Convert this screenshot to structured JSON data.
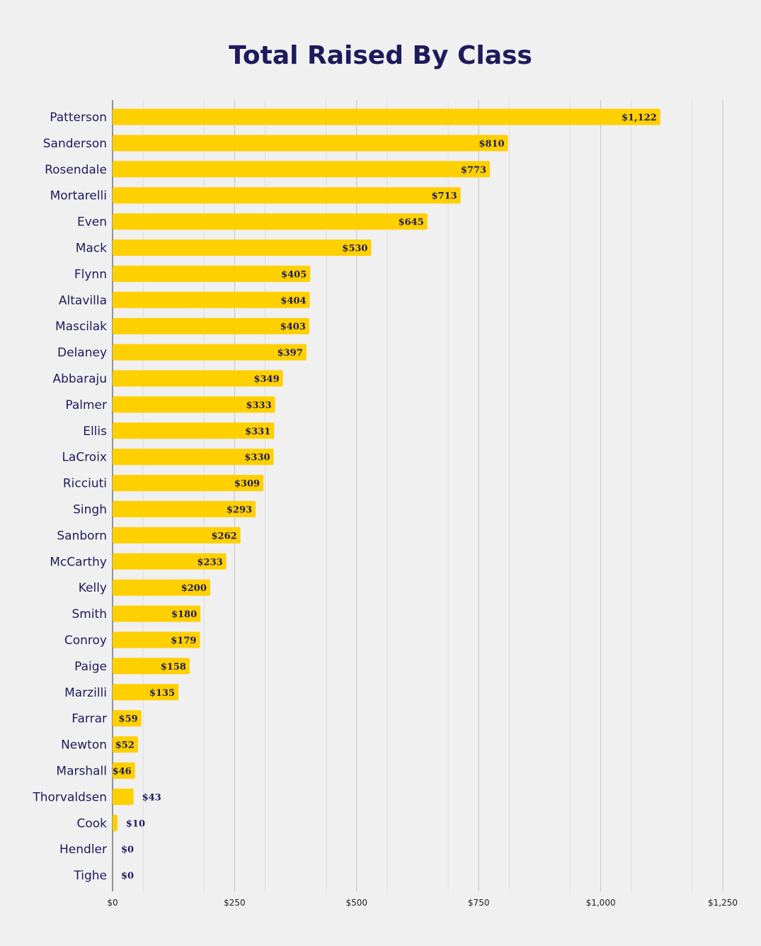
{
  "chart_data": {
    "type": "bar",
    "orientation": "horizontal",
    "title": "Total Raised By Class",
    "xlabel": "",
    "ylabel": "",
    "xlim": [
      0,
      1250
    ],
    "xticks": [
      0,
      250,
      500,
      750,
      1000,
      1250
    ],
    "xtick_labels": [
      "$0",
      "$250",
      "$500",
      "$750",
      "$1,000",
      "$1,250"
    ],
    "grid": true,
    "bar_color": "#ffd000",
    "text_color": "#1e1a5c",
    "categories": [
      "Patterson",
      "Sanderson",
      "Rosendale",
      "Mortarelli",
      "Even",
      "Mack",
      "Flynn",
      "Altavilla",
      "Mascilak",
      "Delaney",
      "Abbaraju",
      "Palmer",
      "Ellis",
      "LaCroix",
      "Ricciuti",
      "Singh",
      "Sanborn",
      "McCarthy",
      "Kelly",
      "Smith",
      "Conroy",
      "Paige",
      "Marzilli",
      "Farrar",
      "Newton",
      "Marshall",
      "Thorvaldsen",
      "Cook",
      "Hendler",
      "Tighe"
    ],
    "values": [
      1122,
      810,
      773,
      713,
      645,
      530,
      405,
      404,
      403,
      397,
      349,
      333,
      331,
      330,
      309,
      293,
      262,
      233,
      200,
      180,
      179,
      158,
      135,
      59,
      52,
      46,
      43,
      10,
      0,
      0
    ],
    "value_labels": [
      "$1,122",
      "$810",
      "$773",
      "$713",
      "$645",
      "$530",
      "$405",
      "$404",
      "$403",
      "$397",
      "$349",
      "$333",
      "$331",
      "$330",
      "$309",
      "$293",
      "$262",
      "$233",
      "$200",
      "$180",
      "$179",
      "$158",
      "$135",
      "$59",
      "$52",
      "$46",
      "$43",
      "$10",
      "$0",
      "$0"
    ]
  }
}
